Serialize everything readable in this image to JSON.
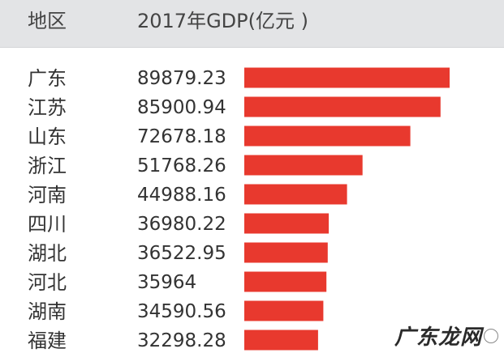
{
  "header": {
    "region": "地区",
    "gdp": "2017年GDP(亿元 )"
  },
  "chart_data": {
    "type": "bar",
    "orientation": "horizontal",
    "categories": [
      "广东",
      "江苏",
      "山东",
      "浙江",
      "河南",
      "四川",
      "湖北",
      "河北",
      "湖南",
      "福建"
    ],
    "value_labels": [
      "89879.23",
      "85900.94",
      "72678.18",
      "51768.26",
      "44988.16",
      "36980.22",
      "36522.95",
      "35964",
      "34590.56",
      "32298.28"
    ],
    "values": [
      89879.23,
      85900.94,
      72678.18,
      51768.26,
      44988.16,
      36980.22,
      36522.95,
      35964,
      34590.56,
      32298.28
    ],
    "bar_color": "#e8392e",
    "grid": false,
    "legend": "none"
  },
  "watermark": {
    "text": "广东龙网"
  }
}
